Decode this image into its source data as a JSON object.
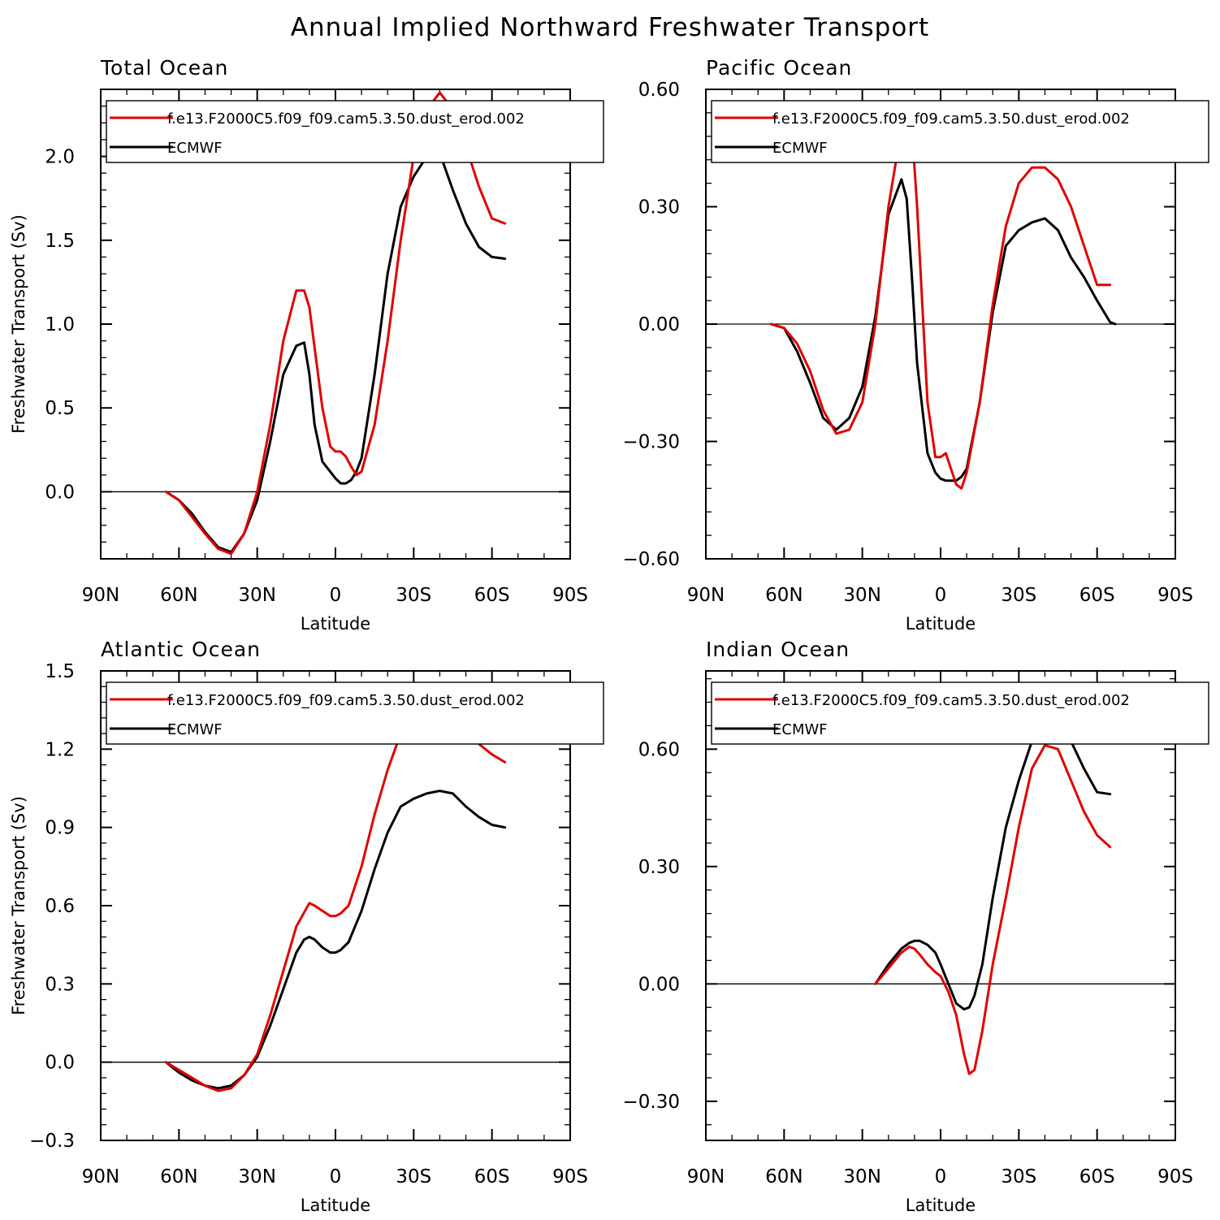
{
  "title": "Annual Implied Northward Freshwater Transport",
  "colors": {
    "model": "#e00000",
    "reference": "#000000",
    "frame": "#000000"
  },
  "chart_data": [
    {
      "type": "line",
      "title": "Total Ocean",
      "xlabel": "Latitude",
      "ylabel": "Freshwater Transport (Sv)",
      "xlim": [
        90,
        -90
      ],
      "ylim": [
        -0.4,
        2.4
      ],
      "x_ticks": [
        90,
        60,
        30,
        0,
        -30,
        -60,
        -90
      ],
      "x_tick_labels": [
        "90N",
        "60N",
        "30N",
        "0",
        "30S",
        "60S",
        "90S"
      ],
      "y_ticks": [
        0.0,
        0.5,
        1.0,
        1.5,
        2.0
      ],
      "y_tick_labels": [
        "0.0",
        "0.5",
        "1.0",
        "1.5",
        "2.0"
      ],
      "zero_line": true,
      "legend_position": "top",
      "series": [
        {
          "name": "f.e13.F2000C5.f09_f09.cam5.3.50.dust_erod.002",
          "color": "#e00000",
          "x": [
            65,
            60,
            55,
            50,
            45,
            40,
            35,
            30,
            25,
            20,
            15,
            12,
            10,
            5,
            2,
            0,
            -2,
            -4,
            -6,
            -8,
            -10,
            -15,
            -20,
            -25,
            -30,
            -35,
            -40,
            -45,
            -50,
            -55,
            -60,
            -65
          ],
          "y": [
            0.0,
            -0.05,
            -0.15,
            -0.25,
            -0.34,
            -0.37,
            -0.25,
            0.0,
            0.4,
            0.9,
            1.2,
            1.2,
            1.1,
            0.5,
            0.27,
            0.24,
            0.24,
            0.21,
            0.15,
            0.1,
            0.12,
            0.4,
            0.9,
            1.5,
            2.0,
            2.28,
            2.38,
            2.28,
            2.06,
            1.82,
            1.63,
            1.6
          ]
        },
        {
          "name": "ECMWF",
          "color": "#000000",
          "x": [
            65,
            60,
            55,
            50,
            45,
            40,
            35,
            30,
            25,
            20,
            15,
            12,
            10,
            8,
            5,
            2,
            0,
            -2,
            -4,
            -6,
            -8,
            -10,
            -15,
            -20,
            -25,
            -30,
            -35,
            -40,
            -45,
            -50,
            -55,
            -60,
            -65
          ],
          "y": [
            0.0,
            -0.05,
            -0.13,
            -0.24,
            -0.33,
            -0.36,
            -0.25,
            -0.05,
            0.3,
            0.7,
            0.87,
            0.89,
            0.7,
            0.4,
            0.18,
            0.12,
            0.08,
            0.05,
            0.05,
            0.07,
            0.12,
            0.2,
            0.7,
            1.3,
            1.7,
            1.88,
            2.0,
            2.02,
            1.8,
            1.6,
            1.46,
            1.4,
            1.39
          ]
        }
      ]
    },
    {
      "type": "line",
      "title": "Pacific Ocean",
      "xlabel": "Latitude",
      "ylabel": "",
      "xlim": [
        90,
        -90
      ],
      "ylim": [
        -0.6,
        0.6
      ],
      "x_ticks": [
        90,
        60,
        30,
        0,
        -30,
        -60,
        -90
      ],
      "x_tick_labels": [
        "90N",
        "60N",
        "30N",
        "0",
        "30S",
        "60S",
        "90S"
      ],
      "y_ticks": [
        -0.6,
        -0.3,
        0.0,
        0.3,
        0.6
      ],
      "y_tick_labels": [
        "−0.60",
        "−0.30",
        "0.00",
        "0.30",
        "0.60"
      ],
      "zero_line": true,
      "legend_position": "top",
      "series": [
        {
          "name": "f.e13.F2000C5.f09_f09.cam5.3.50.dust_erod.002",
          "color": "#e00000",
          "x": [
            65,
            60,
            55,
            50,
            45,
            40,
            35,
            30,
            25,
            20,
            15,
            13,
            11,
            9,
            5,
            2,
            0,
            -2,
            -4,
            -6,
            -8,
            -10,
            -15,
            -20,
            -25,
            -30,
            -35,
            -40,
            -45,
            -50,
            -55,
            -60,
            -65
          ],
          "y": [
            0.0,
            -0.01,
            -0.05,
            -0.12,
            -0.22,
            -0.28,
            -0.27,
            -0.2,
            0.0,
            0.3,
            0.5,
            0.54,
            0.5,
            0.3,
            -0.2,
            -0.34,
            -0.34,
            -0.33,
            -0.37,
            -0.41,
            -0.42,
            -0.38,
            -0.2,
            0.05,
            0.25,
            0.36,
            0.4,
            0.4,
            0.37,
            0.3,
            0.2,
            0.1,
            0.1
          ]
        },
        {
          "name": "ECMWF",
          "color": "#000000",
          "x": [
            65,
            60,
            55,
            50,
            45,
            40,
            35,
            30,
            25,
            20,
            15,
            13,
            11,
            9,
            5,
            2,
            0,
            -2,
            -4,
            -6,
            -8,
            -10,
            -15,
            -20,
            -25,
            -30,
            -35,
            -40,
            -45,
            -50,
            -55,
            -60,
            -65,
            -67
          ],
          "y": [
            0.0,
            -0.01,
            -0.07,
            -0.15,
            -0.24,
            -0.27,
            -0.24,
            -0.16,
            0.02,
            0.28,
            0.37,
            0.32,
            0.12,
            -0.1,
            -0.33,
            -0.38,
            -0.395,
            -0.4,
            -0.4,
            -0.4,
            -0.39,
            -0.37,
            -0.2,
            0.03,
            0.2,
            0.24,
            0.26,
            0.27,
            0.24,
            0.17,
            0.12,
            0.06,
            0.005,
            0.0
          ]
        }
      ]
    },
    {
      "type": "line",
      "title": "Atlantic Ocean",
      "xlabel": "Latitude",
      "ylabel": "Freshwater Transport (Sv)",
      "xlim": [
        90,
        -90
      ],
      "ylim": [
        -0.3,
        1.5
      ],
      "x_ticks": [
        90,
        60,
        30,
        0,
        -30,
        -60,
        -90
      ],
      "x_tick_labels": [
        "90N",
        "60N",
        "30N",
        "0",
        "30S",
        "60S",
        "90S"
      ],
      "y_ticks": [
        -0.3,
        0.0,
        0.3,
        0.6,
        0.9,
        1.2,
        1.5
      ],
      "y_tick_labels": [
        "−0.3",
        "0.0",
        "0.3",
        "0.6",
        "0.9",
        "1.2",
        "1.5"
      ],
      "zero_line": true,
      "legend_position": "top",
      "series": [
        {
          "name": "f.e13.F2000C5.f09_f09.cam5.3.50.dust_erod.002",
          "color": "#e00000",
          "x": [
            65,
            60,
            55,
            50,
            45,
            40,
            35,
            30,
            25,
            20,
            15,
            10,
            8,
            5,
            2,
            0,
            -2,
            -5,
            -10,
            -15,
            -20,
            -25,
            -30,
            -35,
            -40,
            -45,
            -50,
            -55,
            -60,
            -65
          ],
          "y": [
            0.0,
            -0.03,
            -0.06,
            -0.09,
            -0.11,
            -0.1,
            -0.05,
            0.03,
            0.18,
            0.35,
            0.52,
            0.61,
            0.6,
            0.58,
            0.56,
            0.56,
            0.57,
            0.6,
            0.75,
            0.95,
            1.12,
            1.26,
            1.34,
            1.36,
            1.36,
            1.32,
            1.27,
            1.22,
            1.18,
            1.15
          ]
        },
        {
          "name": "ECMWF",
          "color": "#000000",
          "x": [
            65,
            60,
            55,
            50,
            45,
            40,
            35,
            30,
            25,
            20,
            15,
            12,
            10,
            8,
            5,
            2,
            0,
            -2,
            -5,
            -10,
            -15,
            -20,
            -25,
            -30,
            -35,
            -40,
            -45,
            -50,
            -55,
            -60,
            -65
          ],
          "y": [
            0.0,
            -0.04,
            -0.07,
            -0.09,
            -0.1,
            -0.09,
            -0.05,
            0.02,
            0.14,
            0.28,
            0.42,
            0.47,
            0.48,
            0.47,
            0.44,
            0.42,
            0.42,
            0.43,
            0.46,
            0.58,
            0.74,
            0.88,
            0.98,
            1.01,
            1.03,
            1.04,
            1.03,
            0.98,
            0.94,
            0.91,
            0.9
          ]
        }
      ]
    },
    {
      "type": "line",
      "title": "Indian Ocean",
      "xlabel": "Latitude",
      "ylabel": "",
      "xlim": [
        90,
        -90
      ],
      "ylim": [
        -0.4,
        0.8
      ],
      "x_ticks": [
        90,
        60,
        30,
        0,
        -30,
        -60,
        -90
      ],
      "x_tick_labels": [
        "90N",
        "60N",
        "30N",
        "0",
        "30S",
        "60S",
        "90S"
      ],
      "y_ticks": [
        -0.3,
        0.0,
        0.3,
        0.6
      ],
      "y_tick_labels": [
        "−0.30",
        "0.00",
        "0.30",
        "0.60"
      ],
      "zero_line": true,
      "legend_position": "top",
      "series": [
        {
          "name": "f.e13.F2000C5.f09_f09.cam5.3.50.dust_erod.002",
          "color": "#e00000",
          "x": [
            25,
            20,
            15,
            12,
            10,
            8,
            5,
            2,
            0,
            -3,
            -6,
            -9,
            -11,
            -13,
            -16,
            -20,
            -25,
            -30,
            -35,
            -40,
            -45,
            -50,
            -55,
            -60,
            -65
          ],
          "y": [
            0.0,
            0.04,
            0.08,
            0.095,
            0.09,
            0.075,
            0.05,
            0.03,
            0.02,
            -0.02,
            -0.08,
            -0.18,
            -0.23,
            -0.22,
            -0.12,
            0.05,
            0.22,
            0.4,
            0.55,
            0.61,
            0.6,
            0.52,
            0.44,
            0.38,
            0.35
          ]
        },
        {
          "name": "ECMWF",
          "color": "#000000",
          "x": [
            25,
            20,
            15,
            12,
            10,
            8,
            5,
            2,
            0,
            -3,
            -6,
            -9,
            -11,
            -13,
            -16,
            -20,
            -25,
            -30,
            -35,
            -40,
            -45,
            -50,
            -55,
            -60,
            -65
          ],
          "y": [
            0.0,
            0.05,
            0.09,
            0.105,
            0.11,
            0.11,
            0.1,
            0.08,
            0.05,
            0.0,
            -0.05,
            -0.065,
            -0.06,
            -0.03,
            0.05,
            0.22,
            0.4,
            0.52,
            0.62,
            0.69,
            0.69,
            0.62,
            0.55,
            0.49,
            0.485
          ]
        }
      ]
    }
  ]
}
